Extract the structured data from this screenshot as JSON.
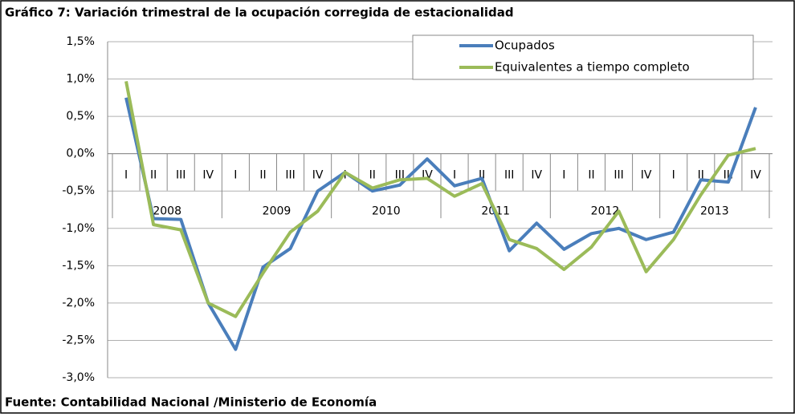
{
  "chart_data": {
    "type": "line",
    "title": "Gráfico 7: Variación trimestral de la ocupación corregida de estacionalidad",
    "source": "Fuente: Contabilidad Nacional /Ministerio de Economía",
    "categories": [
      "I",
      "II",
      "III",
      "IV",
      "I",
      "II",
      "III",
      "IV",
      "I",
      "II",
      "III",
      "IV",
      "I",
      "II",
      "III",
      "IV",
      "I",
      "II",
      "III",
      "IV",
      "I",
      "II",
      "III",
      "IV"
    ],
    "category_groups": [
      "2008",
      "2009",
      "2010",
      "2011",
      "2012",
      "2013"
    ],
    "series": [
      {
        "name": "Ocupados",
        "color": "#4a7ebb",
        "values": [
          0.75,
          -0.87,
          -0.88,
          -2.0,
          -2.62,
          -1.52,
          -1.27,
          -0.5,
          -0.25,
          -0.5,
          -0.42,
          -0.07,
          -0.43,
          -0.33,
          -1.3,
          -0.93,
          -1.28,
          -1.07,
          -1.0,
          -1.15,
          -1.05,
          -0.35,
          -0.38,
          0.62
        ]
      },
      {
        "name": "Equivalentes a tiempo completo",
        "color": "#9bbb59",
        "values": [
          0.97,
          -0.95,
          -1.02,
          -2.0,
          -2.18,
          -1.6,
          -1.05,
          -0.77,
          -0.25,
          -0.46,
          -0.35,
          -0.33,
          -0.57,
          -0.4,
          -1.15,
          -1.27,
          -1.55,
          -1.25,
          -0.77,
          -1.58,
          -1.15,
          -0.55,
          -0.02,
          0.07
        ]
      }
    ],
    "ylim": [
      -3.0,
      1.5
    ],
    "yticks": [
      {
        "value": -3.0,
        "label": "-3,0%"
      },
      {
        "value": -2.5,
        "label": "-2,5%"
      },
      {
        "value": -2.0,
        "label": "-2,0%"
      },
      {
        "value": -1.5,
        "label": "-1,5%"
      },
      {
        "value": -1.0,
        "label": "-1,0%"
      },
      {
        "value": -0.5,
        "label": "-0,5%"
      },
      {
        "value": 0.0,
        "label": "0,0%"
      },
      {
        "value": 0.5,
        "label": "0,5%"
      },
      {
        "value": 1.0,
        "label": "1,0%"
      },
      {
        "value": 1.5,
        "label": "1,5%"
      }
    ],
    "grid": true,
    "legend": "top-right"
  }
}
